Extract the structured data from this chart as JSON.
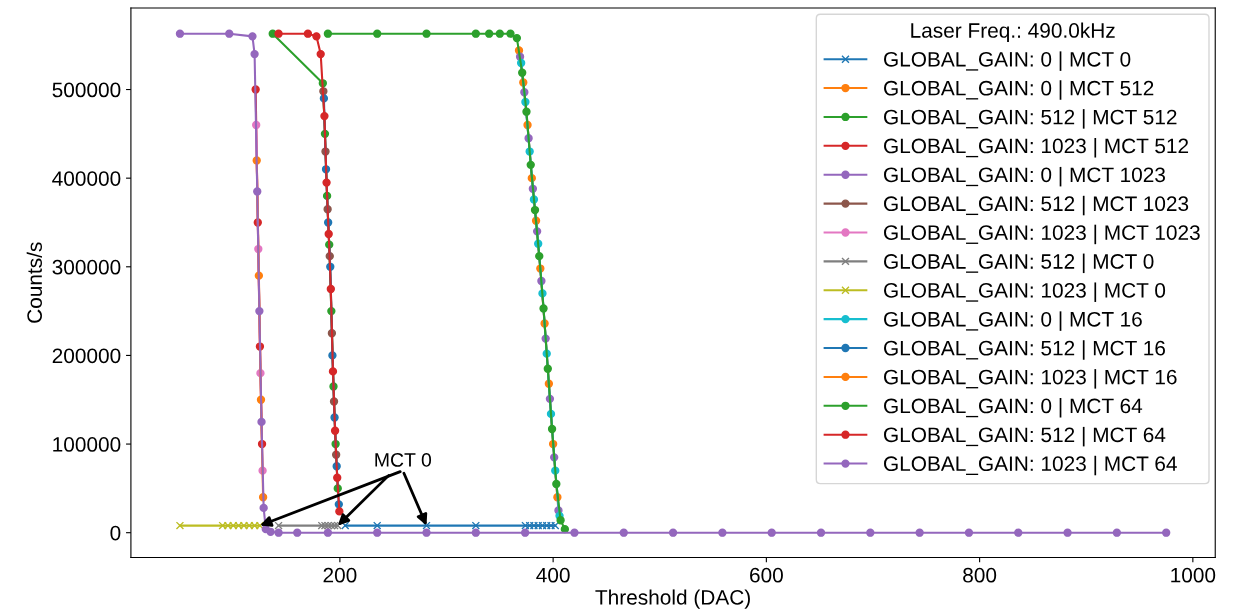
{
  "chart_data": {
    "type": "line",
    "xlabel": "Threshold (DAC)",
    "ylabel": "Counts/s",
    "legend_title": "Laser Freq.: 490.0kHz",
    "legend": "top right",
    "grid": false,
    "xlim": [
      4,
      1021
    ],
    "ylim": [
      -28000,
      592000
    ],
    "xticks": [
      200,
      400,
      600,
      800,
      1000
    ],
    "yticks": [
      0,
      100000,
      200000,
      300000,
      400000,
      500000
    ],
    "annotations": [
      {
        "text": "MCT 0",
        "x": 198,
        "y": 8000
      }
    ],
    "series": [
      {
        "name": "GLOBAL_GAIN: 0 | MCT 0",
        "color": "#1f77b4",
        "marker": "cross",
        "x": [
          205,
          235,
          281.25,
          327.5,
          374,
          378,
          382,
          386,
          390,
          394,
          398,
          402
        ],
        "values": [
          8000,
          8000,
          8000,
          8000,
          8000,
          8000,
          8000,
          8000,
          8000,
          8000,
          8000,
          8000
        ]
      },
      {
        "name": "GLOBAL_GAIN: 0 | MCT 512",
        "color": "#ff7f0e",
        "marker": "circle",
        "x": [
          368,
          372,
          376,
          380,
          384,
          388,
          392,
          396,
          400,
          404
        ],
        "values": [
          544000,
          508000,
          460000,
          400000,
          352000,
          298000,
          236000,
          168000,
          100000,
          40000
        ]
      },
      {
        "name": "GLOBAL_GAIN: 512 | MCT 512",
        "color": "#2ca02c",
        "marker": "circle",
        "x": [
          137,
          184,
          186,
          188,
          190,
          192,
          194,
          196,
          198
        ],
        "values": [
          563000,
          507000,
          450000,
          380000,
          325000,
          250000,
          165000,
          100000,
          50000
        ]
      },
      {
        "name": "GLOBAL_GAIN: 1023 | MCT 512",
        "color": "#d62728",
        "marker": "circle",
        "x": [
          121,
          123,
          125,
          127
        ],
        "values": [
          500000,
          350000,
          210000,
          100000
        ]
      },
      {
        "name": "GLOBAL_GAIN: 0 | MCT 1023",
        "color": "#9467bd",
        "marker": "circle",
        "x": [
          369,
          373,
          377,
          381,
          385,
          389,
          393,
          397,
          401,
          405
        ],
        "values": [
          537000,
          497000,
          445000,
          388000,
          340000,
          284000,
          219000,
          151000,
          85000,
          25000
        ]
      },
      {
        "name": "GLOBAL_GAIN: 512 | MCT 1023",
        "color": "#8c564b",
        "marker": "circle",
        "x": [
          184.5,
          186.5,
          188.5,
          190.5,
          192.5,
          194.5,
          196.5
        ],
        "values": [
          498000,
          430000,
          365000,
          312000,
          225000,
          148000,
          88000
        ]
      },
      {
        "name": "GLOBAL_GAIN: 1023 | MCT 1023",
        "color": "#e377c2",
        "marker": "circle",
        "x": [
          121.5,
          123.5,
          125.5,
          127.5
        ],
        "values": [
          460000,
          320000,
          180000,
          70000
        ]
      },
      {
        "name": "GLOBAL_GAIN: 512 | MCT 0",
        "color": "#7f7f7f",
        "marker": "cross",
        "x": [
          142.5,
          183,
          186,
          189,
          192,
          195,
          198
        ],
        "values": [
          8000,
          8000,
          8000,
          8000,
          8000,
          8000,
          8000
        ]
      },
      {
        "name": "GLOBAL_GAIN: 1023 | MCT 0",
        "color": "#bcbd22",
        "marker": "cross",
        "x": [
          50,
          90,
          95,
          100,
          105,
          110,
          115,
          120,
          125
        ],
        "values": [
          8000,
          8000,
          8000,
          8000,
          8000,
          8000,
          8000,
          8000,
          8000
        ]
      },
      {
        "name": "GLOBAL_GAIN: 0 | MCT 16",
        "color": "#17becf",
        "marker": "circle",
        "x": [
          370,
          374,
          378,
          382,
          386,
          390,
          394,
          398,
          402,
          406
        ],
        "values": [
          530000,
          486000,
          430000,
          376000,
          326000,
          270000,
          202000,
          134000,
          70000,
          19000
        ]
      },
      {
        "name": "GLOBAL_GAIN: 512 | MCT 16",
        "color": "#1f77b4",
        "marker": "circle",
        "x": [
          185,
          187,
          189,
          191,
          193,
          195,
          197,
          199
        ],
        "values": [
          490000,
          410000,
          350000,
          300000,
          200000,
          130000,
          75000,
          32000
        ]
      },
      {
        "name": "GLOBAL_GAIN: 1023 | MCT 16",
        "color": "#ff7f0e",
        "marker": "circle",
        "x": [
          122,
          124,
          126,
          128
        ],
        "values": [
          420000,
          290000,
          150000,
          40000
        ]
      },
      {
        "name": "GLOBAL_GAIN: 0 | MCT 64",
        "color": "#2ca02c",
        "marker": "circle",
        "x": [
          188.75,
          235,
          281.25,
          327.5,
          340,
          350,
          360,
          366,
          371,
          375,
          379,
          383,
          387,
          391,
          395,
          399,
          403,
          407,
          411
        ],
        "values": [
          563000,
          563000,
          563000,
          563000,
          563000,
          563000,
          563000,
          558000,
          519000,
          475000,
          415000,
          364000,
          312000,
          253000,
          185000,
          117000,
          55000,
          14000,
          4000
        ]
      },
      {
        "name": "GLOBAL_GAIN: 512 | MCT 64",
        "color": "#d62728",
        "marker": "circle",
        "x": [
          142.5,
          170,
          178,
          182,
          185.5,
          187.5,
          189.5,
          191.5,
          193.5,
          195.5,
          197.5,
          199.5
        ],
        "values": [
          563000,
          563000,
          560000,
          540000,
          470000,
          395000,
          337000,
          275000,
          182000,
          115000,
          62000,
          24000
        ]
      },
      {
        "name": "GLOBAL_GAIN: 1023 | MCT 64",
        "color": "#9467bd",
        "marker": "circle",
        "x": [
          50,
          96.25,
          118,
          120,
          122.5,
          124.5,
          126.5,
          128.5,
          130.5,
          135,
          142.5,
          160,
          188.75,
          235,
          281.25,
          327.5,
          373.75,
          420,
          466.25,
          512.5,
          558.75,
          605,
          651.25,
          697.5,
          743.75,
          790,
          836.25,
          882.5,
          928.75,
          975
        ],
        "values": [
          563000,
          563000,
          560000,
          540000,
          385000,
          250000,
          125000,
          28000,
          4000,
          1000,
          0,
          0,
          0,
          0,
          0,
          0,
          0,
          0,
          0,
          0,
          0,
          0,
          0,
          0,
          0,
          0,
          0,
          0,
          0,
          0
        ]
      }
    ]
  }
}
